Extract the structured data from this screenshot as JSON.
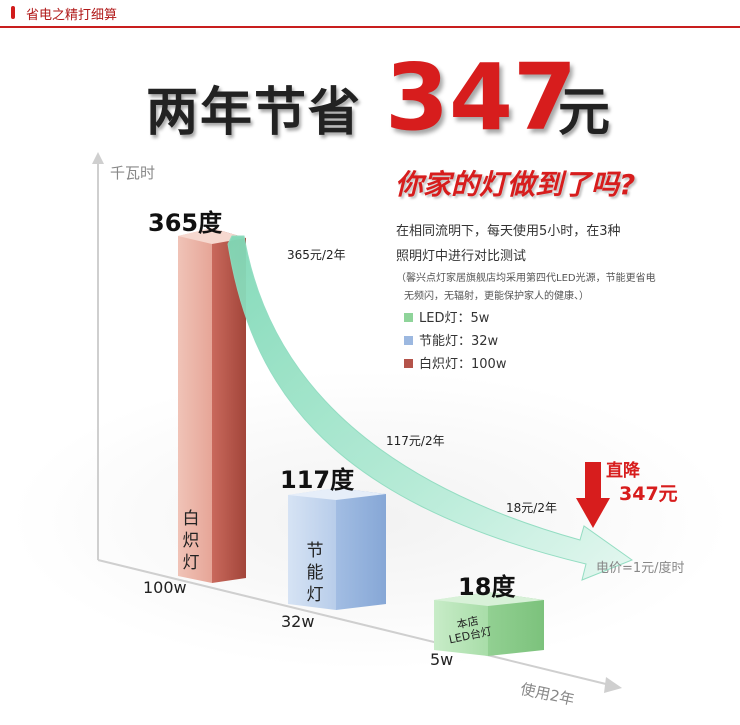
{
  "topbar": {
    "label": "省电之精打细算"
  },
  "headline": {
    "prefix": "两年节省",
    "amount": "347",
    "unit": "元"
  },
  "question": "你家的灯做到了吗?",
  "description": {
    "line1": "在相同流明下，每天使用5小时，在3种",
    "line2": "照明灯中进行对比测试",
    "note1": "（馨兴点灯家居旗舰店均采用第四代LED光源，节能更省电",
    "note2": "无频闪，无辐射，更能保护家人的健康、）"
  },
  "legend": [
    {
      "label": "LED灯：5w",
      "color": "#8fd49a"
    },
    {
      "label": "节能灯：32w",
      "color": "#9cb8e0"
    },
    {
      "label": "白炽灯：100w",
      "color": "#b4534a"
    }
  ],
  "axis": {
    "y_label": "千瓦时",
    "x_label": "使用2年"
  },
  "bars": [
    {
      "kwh_label": "365度",
      "name": "白炽灯",
      "watt": "100w",
      "cost": "365元/2年",
      "kwh": 365
    },
    {
      "kwh_label": "117度",
      "name": "节能灯",
      "watt": "32w",
      "cost": "117元/2年",
      "kwh": 117
    },
    {
      "kwh_label": "18度",
      "name": "本店LED台灯",
      "watt": "5w",
      "cost": "18元/2年",
      "kwh": 18
    }
  ],
  "led_name_line1": "本店",
  "led_name_line2": "LED台灯",
  "drop": {
    "line1": "直降",
    "line2": "347元"
  },
  "price_note": "电价=1元/度时",
  "colors": {
    "accent": "#d71d1d",
    "arrow": "#9ee2c6"
  }
}
